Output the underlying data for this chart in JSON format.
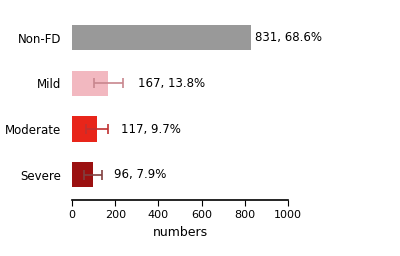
{
  "categories": [
    "Non-FD",
    "Mild",
    "Moderate",
    "Severe"
  ],
  "values": [
    831,
    167,
    117,
    96
  ],
  "labels": [
    "831, 68.6%",
    "167, 13.8%",
    "117, 9.7%",
    "96, 7.9%"
  ],
  "bar_colors": [
    "#999999",
    "#f2b8c0",
    "#e8251a",
    "#9b1010"
  ],
  "xerr_minus": [
    0,
    67,
    50,
    42
  ],
  "xerr_plus": [
    0,
    67,
    50,
    42
  ],
  "err_colors": [
    "none",
    "#c8868e",
    "#c03030",
    "#804040"
  ],
  "xlabel": "numbers",
  "xlim": [
    0,
    1000
  ],
  "xticks": [
    0,
    200,
    400,
    600,
    800,
    1000
  ],
  "bar_height": 0.55,
  "bg_color": "#ffffff",
  "label_fontsize": 8.5,
  "tick_fontsize": 8,
  "xlabel_fontsize": 9,
  "fig_width": 4.0,
  "fig_height": 2.56,
  "label_offsets": [
    15,
    140,
    110,
    100
  ]
}
